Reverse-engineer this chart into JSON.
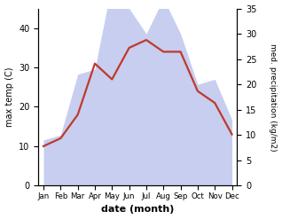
{
  "months": [
    "Jan",
    "Feb",
    "Mar",
    "Apr",
    "May",
    "Jun",
    "Jul",
    "Aug",
    "Sep",
    "Oct",
    "Nov",
    "Dec"
  ],
  "month_indices": [
    0,
    1,
    2,
    3,
    4,
    5,
    6,
    7,
    8,
    9,
    10,
    11
  ],
  "max_temp": [
    10,
    12,
    18,
    31,
    27,
    35,
    37,
    34,
    34,
    24,
    21,
    13
  ],
  "precipitation": [
    9,
    10,
    22,
    23,
    40,
    35,
    30,
    37,
    30,
    20,
    21,
    13
  ],
  "temp_ylim": [
    0,
    45
  ],
  "precip_ylim": [
    0,
    35
  ],
  "temp_yticks": [
    0,
    10,
    20,
    30,
    40
  ],
  "precip_yticks": [
    0,
    5,
    10,
    15,
    20,
    25,
    30,
    35
  ],
  "xlabel": "date (month)",
  "ylabel_left": "max temp (C)",
  "ylabel_right": "med. precipitation (kg/m2)",
  "line_color": "#c0392b",
  "fill_color": "#aab4e8",
  "fill_alpha": 0.65,
  "line_width": 1.6,
  "bg_color": "#ffffff"
}
